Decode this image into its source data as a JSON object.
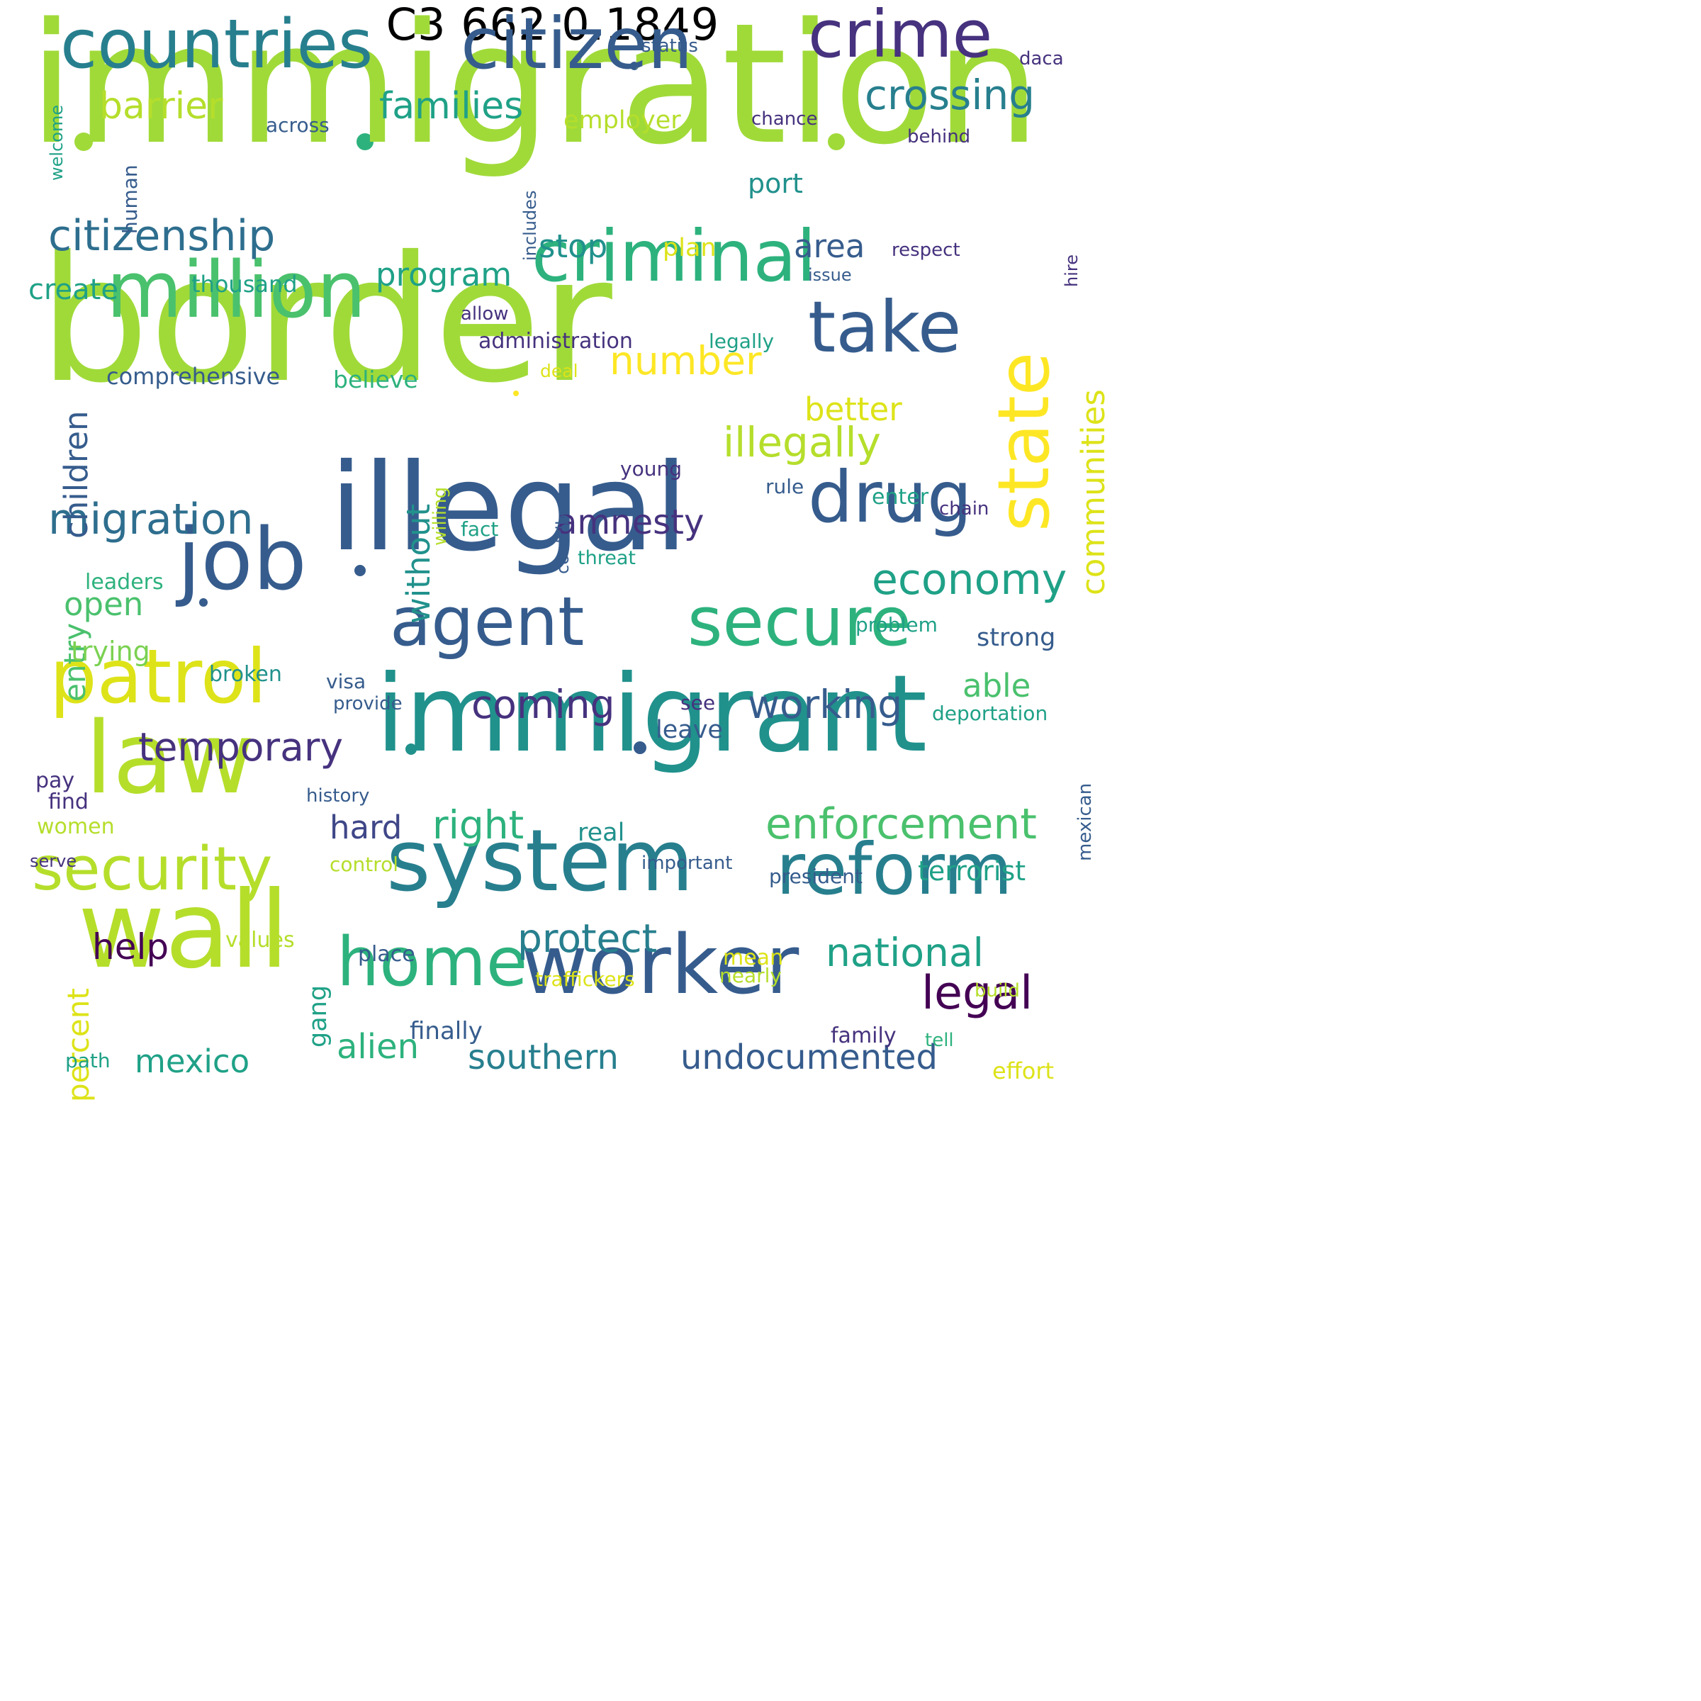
{
  "title": "C3 662 0.1849",
  "palette": {
    "yellow": "#fde725",
    "lime": "#a0da39",
    "limegreen": "#7ad151",
    "green": "#4ac16d",
    "seagreen": "#2db27d",
    "teal": "#1fa187",
    "tealblue": "#21918c",
    "bluegreen": "#277f8e",
    "blue": "#2e6e8e",
    "slate": "#365c8d",
    "indigo": "#3f4788",
    "violet": "#46327e",
    "purple": "#440154",
    "chartreuse": "#b5de2b",
    "gold": "#dde318"
  },
  "words": [
    {
      "text": "immigration",
      "color": "lime"
    },
    {
      "text": "border",
      "color": "lime"
    },
    {
      "text": "illegal",
      "color": "slate"
    },
    {
      "text": "immigrant",
      "color": "tealblue"
    },
    {
      "text": "system",
      "color": "bluegreen"
    },
    {
      "text": "countries",
      "color": "bluegreen"
    },
    {
      "text": "citizen",
      "color": "slate"
    },
    {
      "text": "crime",
      "color": "violet"
    },
    {
      "text": "law",
      "color": "chartreuse"
    },
    {
      "text": "wall",
      "color": "chartreuse"
    },
    {
      "text": "worker",
      "color": "slate"
    },
    {
      "text": "criminal",
      "color": "seagreen"
    },
    {
      "text": "million",
      "color": "green"
    },
    {
      "text": "patrol",
      "color": "gold"
    },
    {
      "text": "job",
      "color": "slate"
    },
    {
      "text": "state",
      "color": "yellow"
    },
    {
      "text": "take",
      "color": "slate"
    },
    {
      "text": "drug",
      "color": "slate"
    },
    {
      "text": "reform",
      "color": "bluegreen"
    },
    {
      "text": "security",
      "color": "chartreuse"
    },
    {
      "text": "secure",
      "color": "seagreen"
    },
    {
      "text": "agent",
      "color": "slate"
    },
    {
      "text": "home",
      "color": "seagreen"
    },
    {
      "text": "citizenship",
      "color": "blue"
    },
    {
      "text": "migration",
      "color": "blue"
    },
    {
      "text": "crossing",
      "color": "bluegreen"
    },
    {
      "text": "families",
      "color": "teal"
    },
    {
      "text": "barrier",
      "color": "chartreuse"
    },
    {
      "text": "illegally",
      "color": "chartreuse"
    },
    {
      "text": "number",
      "color": "yellow"
    },
    {
      "text": "communities",
      "color": "gold"
    },
    {
      "text": "economy",
      "color": "teal"
    },
    {
      "text": "enforcement",
      "color": "green"
    },
    {
      "text": "working",
      "color": "slate"
    },
    {
      "text": "coming",
      "color": "violet"
    },
    {
      "text": "temporary",
      "color": "violet"
    },
    {
      "text": "legal",
      "color": "purple"
    },
    {
      "text": "protect",
      "color": "bluegreen"
    },
    {
      "text": "national",
      "color": "teal"
    },
    {
      "text": "undocumented",
      "color": "slate"
    },
    {
      "text": "southern",
      "color": "bluegreen"
    },
    {
      "text": "alien",
      "color": "seagreen"
    },
    {
      "text": "mexico",
      "color": "teal"
    },
    {
      "text": "right",
      "color": "seagreen"
    },
    {
      "text": "amnesty",
      "color": "violet"
    },
    {
      "text": "program",
      "color": "teal"
    },
    {
      "text": "children",
      "color": "slate"
    },
    {
      "text": "help",
      "color": "purple"
    },
    {
      "text": "hard",
      "color": "indigo"
    },
    {
      "text": "without",
      "color": "tealblue"
    },
    {
      "text": "area",
      "color": "slate"
    },
    {
      "text": "stop",
      "color": "tealblue"
    },
    {
      "text": "better",
      "color": "gold"
    },
    {
      "text": "able",
      "color": "green"
    },
    {
      "text": "open",
      "color": "green"
    },
    {
      "text": "entry",
      "color": "green"
    },
    {
      "text": "create",
      "color": "teal"
    },
    {
      "text": "trying",
      "color": "limegreen"
    },
    {
      "text": "percent",
      "color": "gold"
    },
    {
      "text": "terrorist",
      "color": "teal"
    },
    {
      "text": "employer",
      "color": "chartreuse"
    },
    {
      "text": "comprehensive",
      "color": "slate"
    },
    {
      "text": "believe",
      "color": "seagreen"
    },
    {
      "text": "port",
      "color": "tealblue"
    },
    {
      "text": "plan",
      "color": "gold"
    },
    {
      "text": "strong",
      "color": "slate"
    },
    {
      "text": "across",
      "color": "slate"
    },
    {
      "text": "administration",
      "color": "violet"
    },
    {
      "text": "thousand",
      "color": "teal"
    },
    {
      "text": "status",
      "color": "slate"
    },
    {
      "text": "daca",
      "color": "violet"
    },
    {
      "text": "chance",
      "color": "violet"
    },
    {
      "text": "behind",
      "color": "violet"
    },
    {
      "text": "welcome",
      "color": "teal"
    },
    {
      "text": "human",
      "color": "slate"
    },
    {
      "text": "includes",
      "color": "slate"
    },
    {
      "text": "respect",
      "color": "violet"
    },
    {
      "text": "issue",
      "color": "slate"
    },
    {
      "text": "hire",
      "color": "violet"
    },
    {
      "text": "allow",
      "color": "violet"
    },
    {
      "text": "legally",
      "color": "teal"
    },
    {
      "text": "deal",
      "color": "gold"
    },
    {
      "text": "young",
      "color": "violet"
    },
    {
      "text": "rule",
      "color": "slate"
    },
    {
      "text": "enter",
      "color": "teal"
    },
    {
      "text": "chain",
      "color": "violet"
    },
    {
      "text": "willing",
      "color": "chartreuse"
    },
    {
      "text": "contribute",
      "color": "slate"
    },
    {
      "text": "fact",
      "color": "teal"
    },
    {
      "text": "threat",
      "color": "teal"
    },
    {
      "text": "leaders",
      "color": "seagreen"
    },
    {
      "text": "problem",
      "color": "teal"
    },
    {
      "text": "broken",
      "color": "tealblue"
    },
    {
      "text": "visa",
      "color": "slate"
    },
    {
      "text": "provide",
      "color": "slate"
    },
    {
      "text": "see",
      "color": "violet"
    },
    {
      "text": "leave",
      "color": "slate"
    },
    {
      "text": "deportation",
      "color": "teal"
    },
    {
      "text": "mexican",
      "color": "slate"
    },
    {
      "text": "pay",
      "color": "violet"
    },
    {
      "text": "find",
      "color": "violet"
    },
    {
      "text": "history",
      "color": "slate"
    },
    {
      "text": "women",
      "color": "chartreuse"
    },
    {
      "text": "serve",
      "color": "violet"
    },
    {
      "text": "real",
      "color": "tealblue"
    },
    {
      "text": "control",
      "color": "chartreuse"
    },
    {
      "text": "important",
      "color": "slate"
    },
    {
      "text": "president",
      "color": "slate"
    },
    {
      "text": "values",
      "color": "chartreuse"
    },
    {
      "text": "place",
      "color": "slate"
    },
    {
      "text": "mean",
      "color": "gold"
    },
    {
      "text": "nearly",
      "color": "chartreuse"
    },
    {
      "text": "traffickers",
      "color": "gold"
    },
    {
      "text": "build",
      "color": "chartreuse"
    },
    {
      "text": "gang",
      "color": "teal"
    },
    {
      "text": "finally",
      "color": "slate"
    },
    {
      "text": "family",
      "color": "violet"
    },
    {
      "text": "tell",
      "color": "seagreen"
    },
    {
      "text": "path",
      "color": "teal"
    },
    {
      "text": "effort",
      "color": "gold"
    }
  ]
}
